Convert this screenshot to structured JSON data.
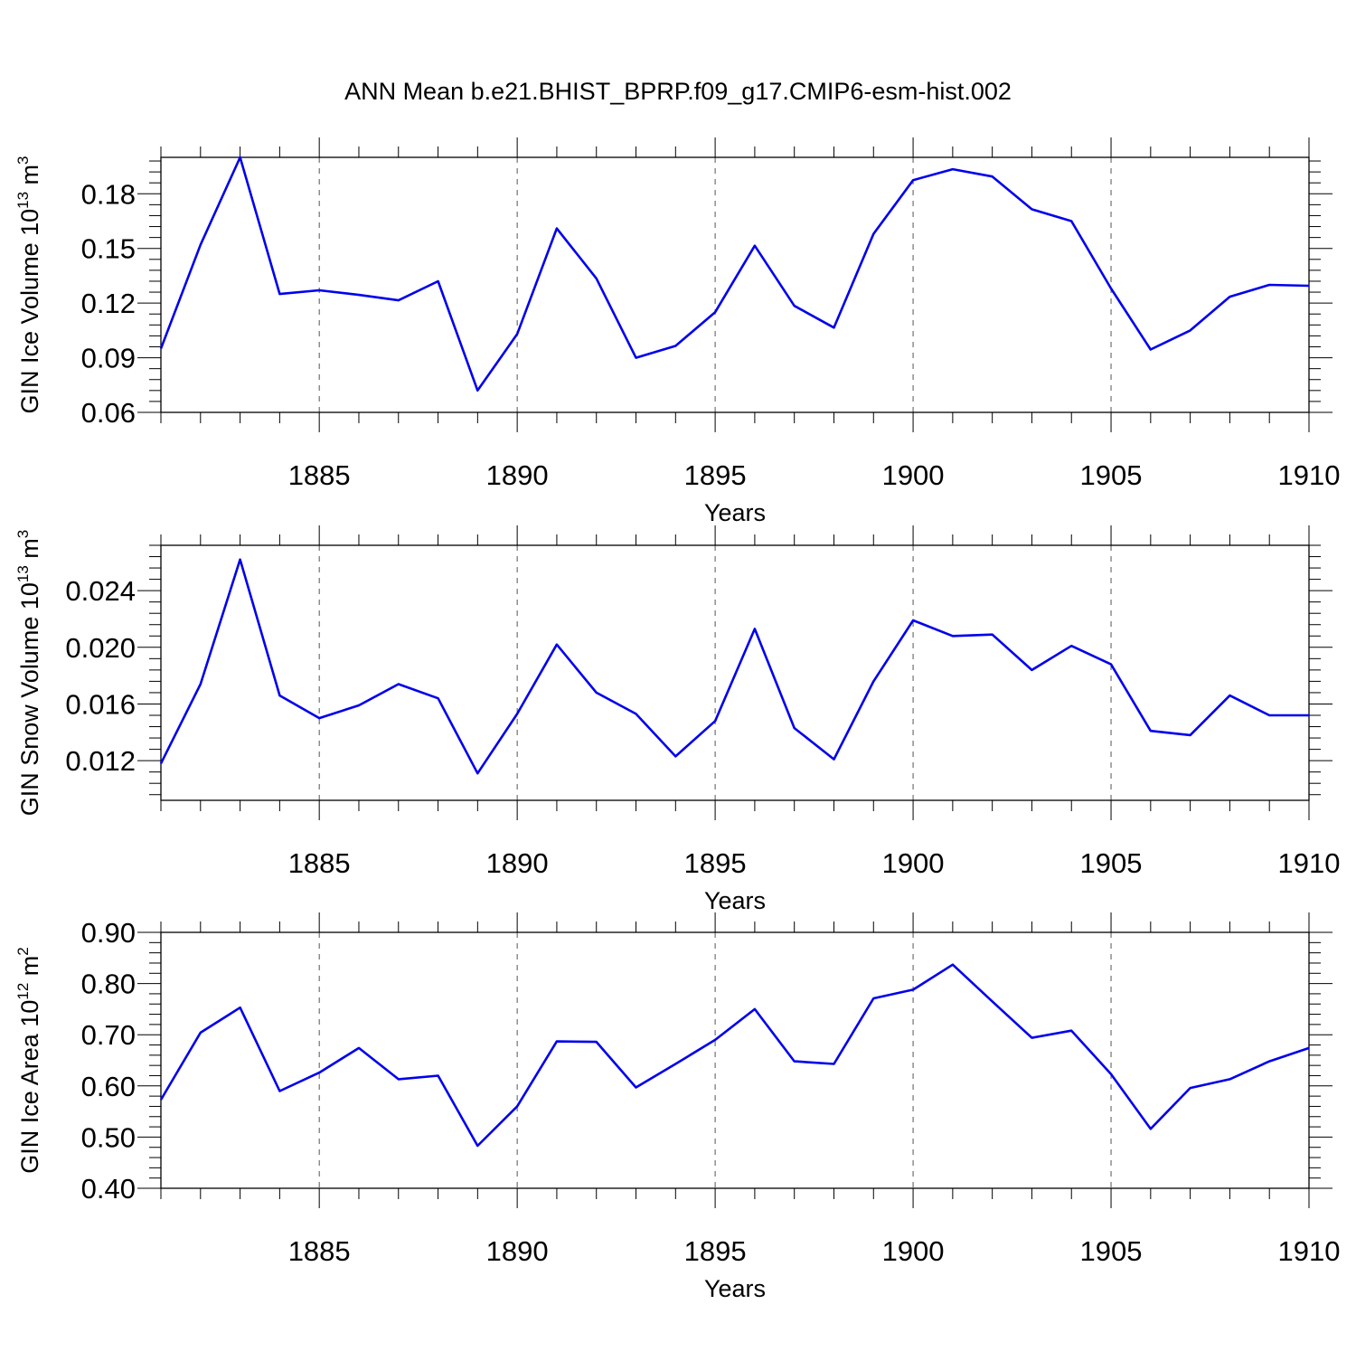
{
  "title": "ANN Mean b.e21.BHIST_BPRP.f09_g17.CMIP6-esm-hist.002",
  "colors": {
    "line": "#0000ee",
    "axis": "#000000",
    "grid": "#555555"
  },
  "chart_data": [
    {
      "type": "line",
      "xlabel": "Years",
      "ylabel": "GIN Ice Volume 10",
      "ylabel_exp": "13",
      "ylabel_unit": " m",
      "ylabel_unit_exp": "3",
      "xlim": [
        1881,
        1910
      ],
      "ylim": [
        0.06,
        0.2
      ],
      "xticks": [
        1885,
        1890,
        1895,
        1900,
        1905,
        1910
      ],
      "yticks": [
        0.06,
        0.09,
        0.12,
        0.15,
        0.18
      ],
      "ytick_labels": [
        "0.06",
        "0.09",
        "0.12",
        "0.15",
        "0.18"
      ],
      "grid": "vertical dashed at major x ticks",
      "series": [
        {
          "x": [
            1881,
            1882,
            1883,
            1884,
            1885,
            1886,
            1887,
            1888,
            1889,
            1890,
            1891,
            1892,
            1893,
            1894,
            1895,
            1896,
            1897,
            1898,
            1899,
            1900,
            1901,
            1902,
            1903,
            1904,
            1905,
            1906,
            1907,
            1908,
            1909,
            1910
          ],
          "values": [
            0.095,
            0.152,
            0.2,
            0.125,
            0.127,
            0.1245,
            0.1215,
            0.132,
            0.072,
            0.103,
            0.161,
            0.1335,
            0.09,
            0.0965,
            0.115,
            0.1515,
            0.1185,
            0.1065,
            0.158,
            0.1875,
            0.1935,
            0.1895,
            0.1715,
            0.165,
            0.128,
            0.0945,
            0.105,
            0.1235,
            0.13,
            0.1295
          ]
        }
      ]
    },
    {
      "type": "line",
      "xlabel": "Years",
      "ylabel": "GIN Snow Volume 10",
      "ylabel_exp": "13",
      "ylabel_unit": " m",
      "ylabel_unit_exp": "3",
      "xlim": [
        1881,
        1910
      ],
      "ylim": [
        0.0092,
        0.0272
      ],
      "xticks": [
        1885,
        1890,
        1895,
        1900,
        1905,
        1910
      ],
      "yticks": [
        0.012,
        0.016,
        0.02,
        0.024
      ],
      "ytick_labels": [
        "0.012",
        "0.016",
        "0.020",
        "0.024"
      ],
      "grid": "vertical dashed at major x ticks",
      "series": [
        {
          "x": [
            1881,
            1882,
            1883,
            1884,
            1885,
            1886,
            1887,
            1888,
            1889,
            1890,
            1891,
            1892,
            1893,
            1894,
            1895,
            1896,
            1897,
            1898,
            1899,
            1900,
            1901,
            1902,
            1903,
            1904,
            1905,
            1906,
            1907,
            1908,
            1909,
            1910
          ],
          "values": [
            0.0118,
            0.0174,
            0.0262,
            0.0166,
            0.015,
            0.0159,
            0.0174,
            0.0164,
            0.0111,
            0.0153,
            0.0202,
            0.0168,
            0.0153,
            0.0123,
            0.0148,
            0.0213,
            0.0143,
            0.0121,
            0.0176,
            0.0219,
            0.0208,
            0.0209,
            0.0184,
            0.0201,
            0.0188,
            0.0141,
            0.0138,
            0.0166,
            0.0152,
            0.0152
          ]
        }
      ]
    },
    {
      "type": "line",
      "xlabel": "Years",
      "ylabel": "GIN Ice Area 10",
      "ylabel_exp": "12",
      "ylabel_unit": " m",
      "ylabel_unit_exp": "2",
      "xlim": [
        1881,
        1910
      ],
      "ylim": [
        0.4,
        0.9
      ],
      "xticks": [
        1885,
        1890,
        1895,
        1900,
        1905,
        1910
      ],
      "yticks": [
        0.4,
        0.5,
        0.6,
        0.7,
        0.8,
        0.9
      ],
      "ytick_labels": [
        "0.40",
        "0.50",
        "0.60",
        "0.70",
        "0.80",
        "0.90"
      ],
      "grid": "vertical dashed at major x ticks",
      "series": [
        {
          "x": [
            1881,
            1882,
            1883,
            1884,
            1885,
            1886,
            1887,
            1888,
            1889,
            1890,
            1891,
            1892,
            1893,
            1894,
            1895,
            1896,
            1897,
            1898,
            1899,
            1900,
            1901,
            1902,
            1903,
            1904,
            1905,
            1906,
            1907,
            1908,
            1909,
            1910
          ],
          "values": [
            0.573,
            0.704,
            0.753,
            0.59,
            0.626,
            0.674,
            0.613,
            0.62,
            0.483,
            0.56,
            0.687,
            0.686,
            0.597,
            0.643,
            0.69,
            0.75,
            0.648,
            0.643,
            0.771,
            0.788,
            0.837,
            0.765,
            0.694,
            0.708,
            0.623,
            0.516,
            0.596,
            0.613,
            0.648,
            0.674
          ]
        }
      ]
    }
  ]
}
